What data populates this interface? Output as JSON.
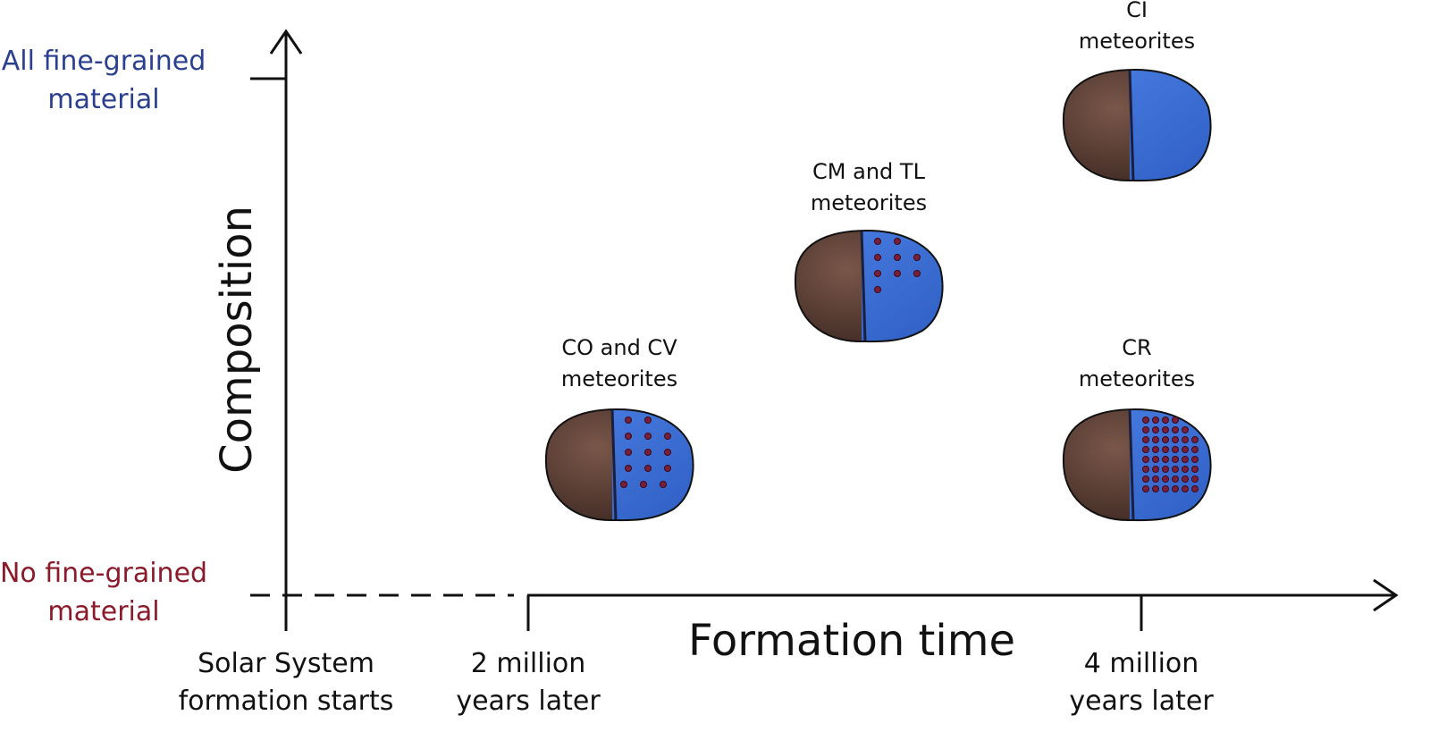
{
  "y_axis": {
    "label": "Composition",
    "top_label": [
      "All fine-grained",
      "material"
    ],
    "bottom_label": [
      "No fine-grained",
      "material"
    ]
  },
  "x_axis": {
    "label": "Formation time",
    "ticks": [
      [
        "Solar System",
        "formation starts"
      ],
      [
        "2 million",
        "years later"
      ],
      [
        "4 million",
        "years later"
      ]
    ]
  },
  "meteorites": [
    {
      "label": [
        "CO and CV",
        "meteorites"
      ]
    },
    {
      "label": [
        "CM and TL",
        "meteorites"
      ]
    },
    {
      "label": [
        "CI",
        "meteorites"
      ]
    },
    {
      "label": [
        "CR",
        "meteorites"
      ]
    }
  ]
}
